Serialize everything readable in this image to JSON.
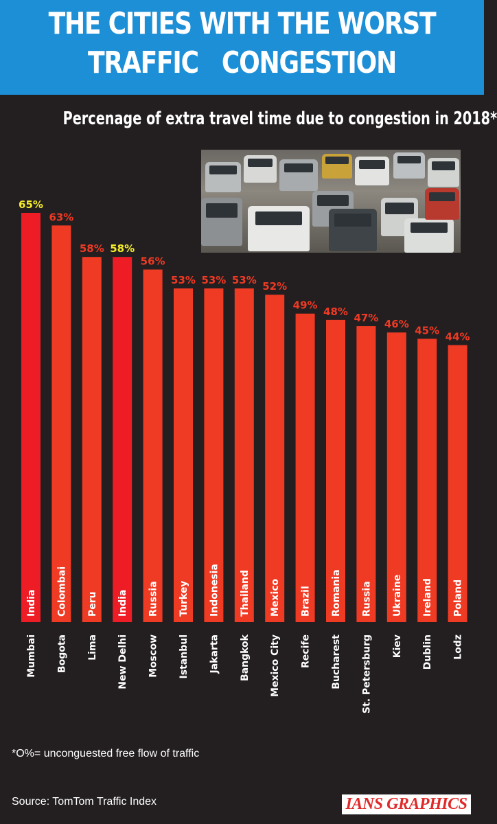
{
  "header": {
    "title_line1": "THE CITIES WITH THE WORST",
    "title_line2": "TRAFFIC   CONGESTION"
  },
  "subtitle": "Percenage of extra travel time due to congestion in 2018*",
  "footnote": "*O%= unconguested free flow of traffic",
  "source": "Source: TomTom Traffic Index",
  "credit": "IANS GRAPHICS",
  "colors": {
    "background": "#231f20",
    "banner": "#1d8fd6",
    "bar": "#ef3a24",
    "bar_highlight": "#ee1c25",
    "label": "#ef3a24",
    "label_highlight": "#f5ec2a"
  },
  "chart_data": {
    "type": "bar",
    "title": "Percenage of extra travel time due to congestion in 2018*",
    "unit": "%",
    "categories": [
      "Mumbai",
      "Bogota",
      "Lima",
      "New Delhi",
      "Moscow",
      "Istanbul",
      "Jakarta",
      "Bangkok",
      "Mexico City",
      "Recife",
      "Bucharest",
      "St. Petersburg",
      "Kiev",
      "Dublin",
      "Lodz"
    ],
    "countries": [
      "India",
      "Colombai",
      "Peru",
      "India",
      "Russia",
      "Turkey",
      "Indonesia",
      "Thailand",
      "Mexico",
      "Brazil",
      "Romania",
      "Russia",
      "Ukraine",
      "Ireland",
      "Poland"
    ],
    "values": [
      65,
      63,
      58,
      58,
      56,
      53,
      53,
      53,
      52,
      49,
      48,
      47,
      46,
      45,
      44
    ],
    "value_labels": [
      "65%",
      "63%",
      "58%",
      "58%",
      "56%",
      "53%",
      "53%",
      "53%",
      "52%",
      "49%",
      "48%",
      "47%",
      "46%",
      "45%",
      "44%"
    ],
    "highlighted": [
      "Mumbai",
      "New Delhi"
    ],
    "xlabel": "",
    "ylabel": "",
    "ylim": [
      0,
      65
    ]
  }
}
